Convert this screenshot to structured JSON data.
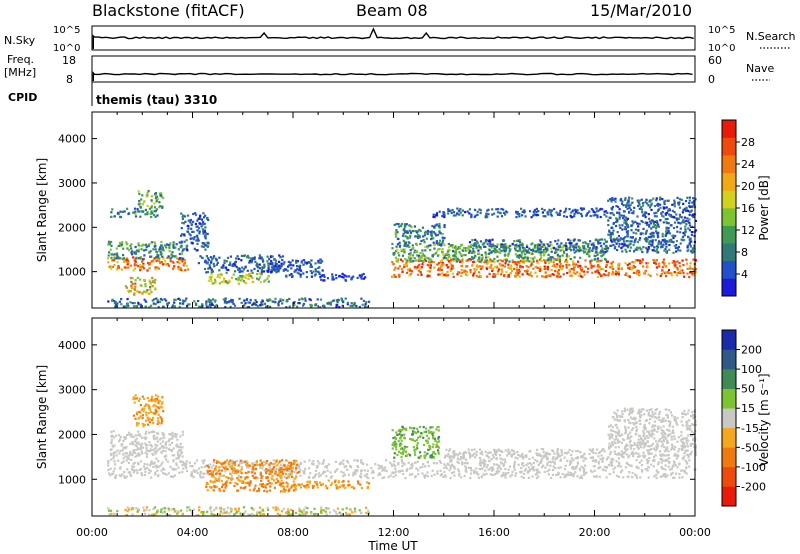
{
  "header": {
    "title": "Blackstone (fitACF)",
    "beam": "Beam 08",
    "date": "15/Mar/2010"
  },
  "status_panels": {
    "nsky": {
      "label": "N.Sky",
      "tick_top": "10^5",
      "tick_bottom": "10^0"
    },
    "nsearch": {
      "label": "N.Search",
      "tick_top": "10^5",
      "tick_bottom": "10^0"
    },
    "freq": {
      "label_line1": "Freq.",
      "label_line2": "[MHz]",
      "tick_top": "18",
      "tick_bottom": "8"
    },
    "nave": {
      "label": "Nave",
      "tick_top": "60",
      "tick_bottom": "0"
    },
    "cpid": {
      "label": "CPID",
      "value": "themis (tau) 3310"
    }
  },
  "chart_data": [
    {
      "type": "heatmap",
      "panel": "power",
      "ylabel": "Slant Range [km]",
      "ylim": [
        180,
        4600
      ],
      "yticks": [
        "1000",
        "2000",
        "3000",
        "4000"
      ],
      "ytick_values": [
        1000,
        2000,
        3000,
        4000
      ],
      "xlim_hours": [
        0,
        24
      ],
      "colorbar": {
        "label": "Power [dB]",
        "range": [
          0,
          32
        ],
        "ticks": [
          "4",
          "8",
          "12",
          "16",
          "20",
          "24",
          "28"
        ],
        "colors": [
          "#1a1ad8",
          "#2250c8",
          "#2f7a78",
          "#3f9a55",
          "#7ec332",
          "#d2d21e",
          "#f0a814",
          "#f07a10",
          "#ee4a0c",
          "#e81a0a"
        ]
      },
      "regions": [
        {
          "t0": 0.6,
          "t1": 3.8,
          "r0": 1050,
          "r1": 1350,
          "v0": 18,
          "v1": 30
        },
        {
          "t0": 0.6,
          "t1": 3.6,
          "r0": 1300,
          "r1": 1700,
          "v0": 4,
          "v1": 16
        },
        {
          "t0": 0.7,
          "t1": 2.6,
          "r0": 2250,
          "r1": 2450,
          "v0": 4,
          "v1": 14
        },
        {
          "t0": 1.8,
          "t1": 2.8,
          "r0": 2450,
          "r1": 2850,
          "v0": 6,
          "v1": 18
        },
        {
          "t0": 3.5,
          "t1": 4.6,
          "r0": 1500,
          "r1": 2350,
          "v0": 2,
          "v1": 10
        },
        {
          "t0": 1.3,
          "t1": 2.5,
          "r0": 500,
          "r1": 900,
          "v0": 10,
          "v1": 26
        },
        {
          "t0": 4.2,
          "t1": 7.6,
          "r0": 1000,
          "r1": 1400,
          "v0": 2,
          "v1": 10
        },
        {
          "t0": 4.6,
          "t1": 7.0,
          "r0": 750,
          "r1": 1000,
          "v0": 10,
          "v1": 22
        },
        {
          "t0": 7.0,
          "t1": 9.2,
          "r0": 900,
          "r1": 1300,
          "v0": 2,
          "v1": 8
        },
        {
          "t0": 9.0,
          "t1": 10.9,
          "r0": 820,
          "r1": 980,
          "v0": 2,
          "v1": 6
        },
        {
          "t0": 0.6,
          "t1": 11.0,
          "r0": 220,
          "r1": 420,
          "v0": 2,
          "v1": 12
        },
        {
          "t0": 11.9,
          "t1": 24.0,
          "r0": 900,
          "r1": 1300,
          "v0": 18,
          "v1": 31
        },
        {
          "t0": 11.9,
          "t1": 20.5,
          "r0": 1250,
          "r1": 1650,
          "v0": 6,
          "v1": 18
        },
        {
          "t0": 12.0,
          "t1": 14.0,
          "r0": 1600,
          "r1": 2100,
          "v0": 4,
          "v1": 14
        },
        {
          "t0": 15.0,
          "t1": 24.0,
          "r0": 1450,
          "r1": 1750,
          "v0": 2,
          "v1": 12
        },
        {
          "t0": 20.5,
          "t1": 24.0,
          "r0": 1700,
          "r1": 2700,
          "v0": 2,
          "v1": 10
        },
        {
          "t0": 13.5,
          "t1": 20.5,
          "r0": 2250,
          "r1": 2450,
          "v0": 2,
          "v1": 8
        }
      ]
    },
    {
      "type": "heatmap",
      "panel": "velocity",
      "ylabel": "Slant Range [km]",
      "ylim": [
        180,
        4600
      ],
      "yticks": [
        "1000",
        "2000",
        "3000",
        "4000"
      ],
      "ytick_values": [
        1000,
        2000,
        3000,
        4000
      ],
      "xlim_hours": [
        0,
        24
      ],
      "xticks": [
        "00:00",
        "04:00",
        "08:00",
        "12:00",
        "16:00",
        "20:00",
        "00:00"
      ],
      "xtick_values": [
        0,
        4,
        8,
        12,
        16,
        20,
        24
      ],
      "xlabel": "Time UT",
      "colorbar": {
        "label": "Velocity [m s⁻¹]",
        "ticks": [
          "-200",
          "-100",
          "-50",
          "-15",
          "15",
          "50",
          "100",
          "200"
        ],
        "colors": [
          "#e81a0a",
          "#ee4a0c",
          "#f07a10",
          "#f5a81e",
          "#c8c8c4",
          "#7ec332",
          "#3f8a55",
          "#2f5a88",
          "#1a2aa8"
        ]
      },
      "regions": [
        {
          "t0": 0.6,
          "t1": 24.0,
          "r0": 1050,
          "r1": 1450,
          "v0": -15,
          "v1": 15
        },
        {
          "t0": 0.7,
          "t1": 3.6,
          "r0": 1450,
          "r1": 2100,
          "v0": -15,
          "v1": 15
        },
        {
          "t0": 1.6,
          "t1": 2.8,
          "r0": 2200,
          "r1": 2900,
          "v0": -60,
          "v1": -25
        },
        {
          "t0": 4.5,
          "t1": 8.2,
          "r0": 750,
          "r1": 1450,
          "v0": -80,
          "v1": -30
        },
        {
          "t0": 8.0,
          "t1": 11.0,
          "r0": 820,
          "r1": 1000,
          "v0": -60,
          "v1": -25
        },
        {
          "t0": 11.9,
          "t1": 13.8,
          "r0": 1500,
          "r1": 2200,
          "v0": 20,
          "v1": 60
        },
        {
          "t0": 14.0,
          "t1": 24.0,
          "r0": 1450,
          "r1": 1700,
          "v0": -15,
          "v1": 15
        },
        {
          "t0": 20.5,
          "t1": 24.0,
          "r0": 1700,
          "r1": 2600,
          "v0": -15,
          "v1": 15
        },
        {
          "t0": 0.6,
          "t1": 11.0,
          "r0": 220,
          "r1": 400,
          "v0": -40,
          "v1": 40
        }
      ]
    }
  ]
}
